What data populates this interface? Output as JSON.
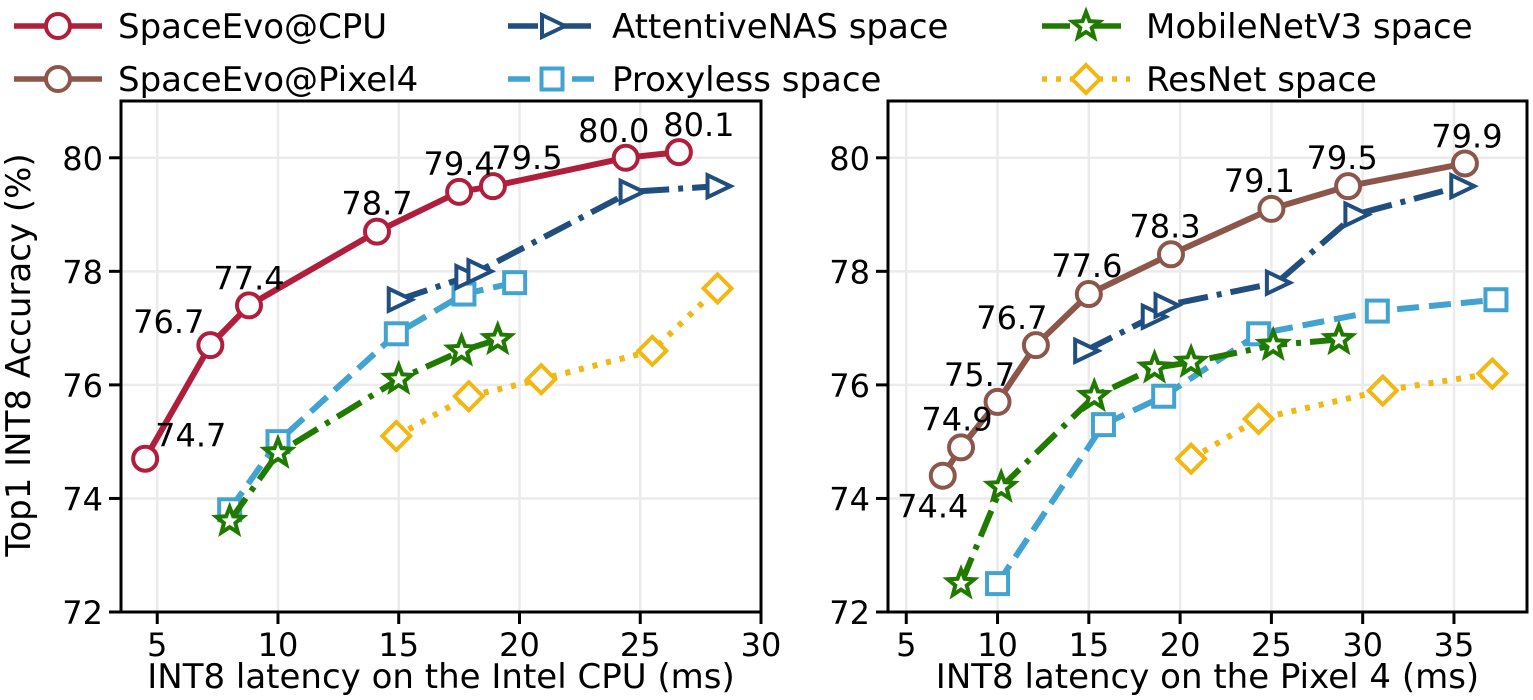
{
  "figure": {
    "ylabel": "Top1 INT8 Accuracy (%)",
    "legend": [
      {
        "key": "spaceevo",
        "label": "SpaceEvo@CPU"
      },
      {
        "key": "attentive",
        "label": "AttentiveNAS space"
      },
      {
        "key": "mobilenet",
        "label": "MobileNetV3 space"
      },
      {
        "key": "pixel4",
        "label": "SpaceEvo@Pixel4"
      },
      {
        "key": "proxyless",
        "label": "Proxyless space"
      },
      {
        "key": "resnet",
        "label": "ResNet space"
      }
    ]
  },
  "styles": {
    "spaceevo": {
      "color": "#b01e3c",
      "dash": "",
      "marker": "circle"
    },
    "pixel4": {
      "color": "#8c564b",
      "dash": "",
      "marker": "circle"
    },
    "attentive": {
      "color": "#1f4e7f",
      "dash": "30 9 5 9",
      "marker": "triangle-right"
    },
    "proxyless": {
      "color": "#42a3d0",
      "dash": "22 10",
      "marker": "square"
    },
    "mobilenet": {
      "color": "#207a00",
      "dash": "28 9 5 9",
      "marker": "star"
    },
    "resnet": {
      "color": "#f2b712",
      "dash": "5 9",
      "marker": "diamond"
    }
  },
  "chart_data": [
    {
      "type": "line",
      "xlabel": "INT8 latency on the Intel CPU (ms)",
      "ylabel": "Top1 INT8 Accuracy (%)",
      "xlim": [
        3.5,
        30
      ],
      "ylim": [
        72,
        81
      ],
      "xticks": [
        5,
        10,
        15,
        20,
        25,
        30
      ],
      "yticks": [
        72,
        74,
        76,
        78,
        80
      ],
      "grid": true,
      "series": [
        {
          "name": "SpaceEvo@CPU",
          "key": "spaceevo",
          "x": [
            4.5,
            7.2,
            8.8,
            14.1,
            17.5,
            18.9,
            24.4,
            26.6
          ],
          "y": [
            74.7,
            76.7,
            77.4,
            78.7,
            79.4,
            79.5,
            80.0,
            80.1
          ],
          "labels": [
            "74.7",
            "76.7",
            "77.4",
            "78.7",
            "79.4",
            "79.5",
            "80.0",
            "80.1"
          ]
        },
        {
          "name": "AttentiveNAS space",
          "key": "attentive",
          "x": [
            15.0,
            17.8,
            18.3,
            24.6,
            28.2
          ],
          "y": [
            77.5,
            77.9,
            78.0,
            79.4,
            79.5
          ]
        },
        {
          "name": "Proxyless space",
          "key": "proxyless",
          "x": [
            8.0,
            10.0,
            14.9,
            17.7,
            19.8
          ],
          "y": [
            73.8,
            75.0,
            76.9,
            77.6,
            77.8
          ]
        },
        {
          "name": "MobileNetV3 space",
          "key": "mobilenet",
          "x": [
            8.0,
            10.0,
            15.0,
            17.6,
            19.1
          ],
          "y": [
            73.6,
            74.8,
            76.1,
            76.6,
            76.8
          ]
        },
        {
          "name": "ResNet space",
          "key": "resnet",
          "x": [
            14.9,
            17.9,
            20.9,
            25.5,
            28.2
          ],
          "y": [
            75.1,
            75.8,
            76.1,
            76.6,
            77.7
          ]
        }
      ]
    },
    {
      "type": "line",
      "xlabel": "INT8 latency on the Pixel 4 (ms)",
      "ylabel": "",
      "xlim": [
        4,
        39
      ],
      "ylim": [
        72,
        81
      ],
      "xticks": [
        5,
        10,
        15,
        20,
        25,
        30,
        35
      ],
      "yticks": [
        72,
        74,
        76,
        78,
        80
      ],
      "grid": true,
      "series": [
        {
          "name": "SpaceEvo@Pixel4",
          "key": "pixel4",
          "x": [
            7.0,
            8.0,
            10.0,
            12.1,
            15.0,
            19.5,
            25.0,
            29.2,
            35.6
          ],
          "y": [
            74.4,
            74.9,
            75.7,
            76.7,
            77.6,
            78.3,
            79.1,
            79.5,
            79.9
          ],
          "labels": [
            "74.4",
            "74.9",
            "75.7",
            "76.7",
            "77.6",
            "78.3",
            "79.1",
            "79.5",
            "79.9"
          ]
        },
        {
          "name": "AttentiveNAS space",
          "key": "attentive",
          "x": [
            14.8,
            18.5,
            19.2,
            25.3,
            29.6,
            35.4
          ],
          "y": [
            76.6,
            77.2,
            77.4,
            77.8,
            79.0,
            79.5
          ]
        },
        {
          "name": "Proxyless space",
          "key": "proxyless",
          "x": [
            10.0,
            15.8,
            19.1,
            24.3,
            30.8,
            37.3
          ],
          "y": [
            72.5,
            75.3,
            75.8,
            76.9,
            77.3,
            77.5
          ]
        },
        {
          "name": "MobileNetV3 space",
          "key": "mobilenet",
          "x": [
            8.0,
            10.2,
            15.3,
            18.6,
            20.6,
            25.1,
            28.7
          ],
          "y": [
            72.5,
            74.2,
            75.8,
            76.3,
            76.4,
            76.7,
            76.8
          ]
        },
        {
          "name": "ResNet space",
          "key": "resnet",
          "x": [
            20.6,
            24.3,
            31.1,
            37.1
          ],
          "y": [
            74.7,
            75.4,
            75.9,
            76.2
          ]
        }
      ]
    }
  ]
}
